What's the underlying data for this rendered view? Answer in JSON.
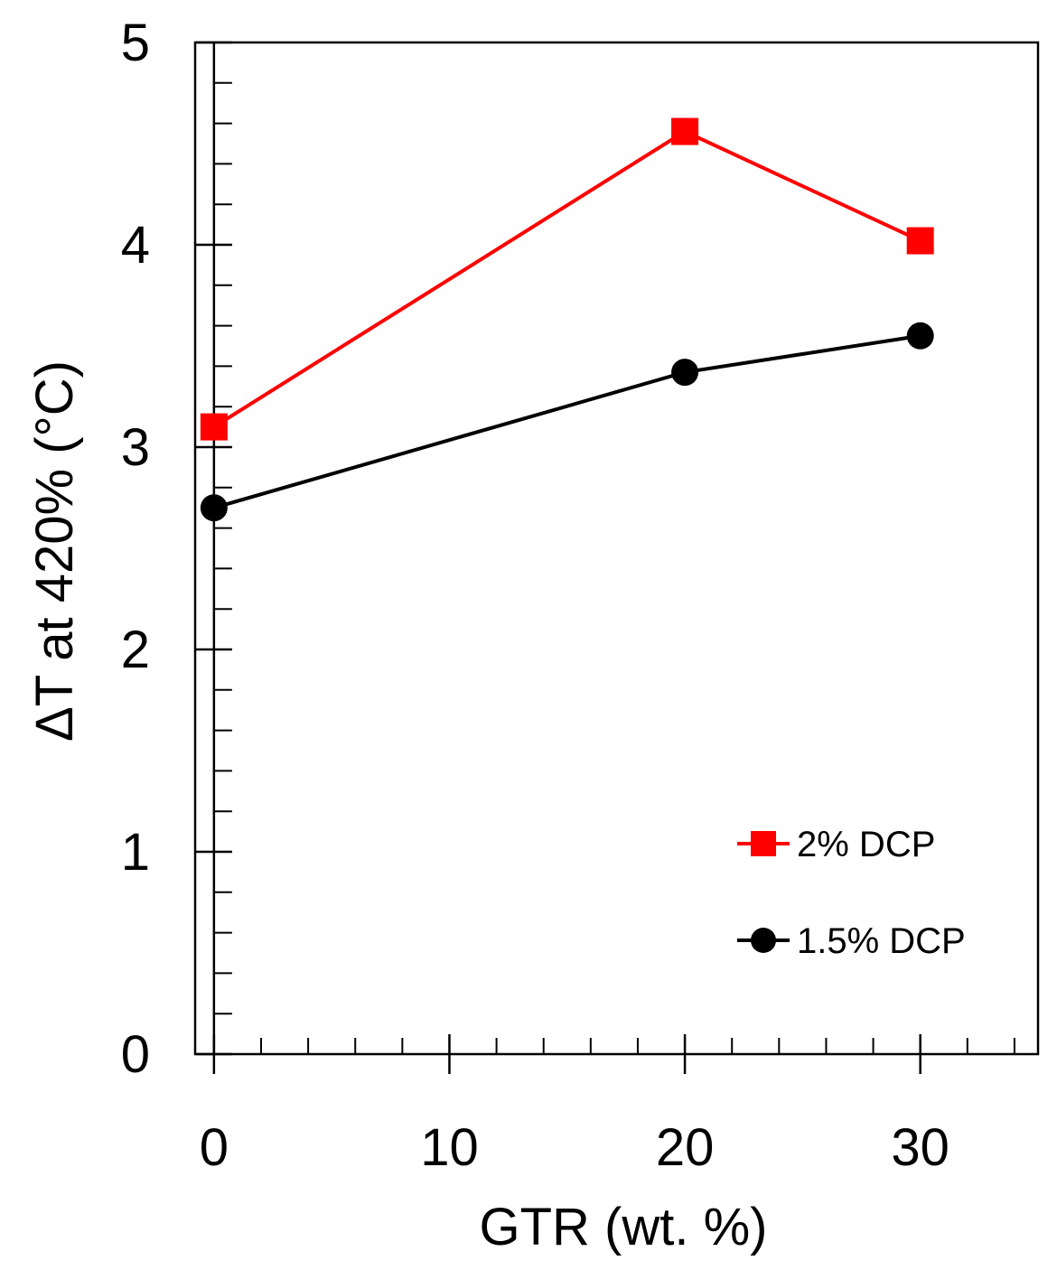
{
  "chart_data": {
    "type": "line",
    "xlabel": "GTR (wt. %)",
    "ylabel": "ΔT at 420% (°C)",
    "xlim": [
      -0.8,
      35
    ],
    "ylim": [
      0,
      5
    ],
    "x_ticks": [
      0,
      10,
      20,
      30
    ],
    "x_tick_labels": [
      "0",
      "10",
      "20",
      "30"
    ],
    "y_ticks": [
      0,
      1,
      2,
      3,
      4,
      5
    ],
    "y_tick_labels": [
      "0",
      "1",
      "2",
      "3",
      "4",
      "5"
    ],
    "x_minor_step": 2,
    "y_minor_step": 0.2,
    "legend_position": "lower-right",
    "series": [
      {
        "name": "2% DCP",
        "color": "#ff0000",
        "marker": "square",
        "x": [
          0,
          20,
          30
        ],
        "y": [
          3.1,
          4.56,
          4.02
        ]
      },
      {
        "name": "1.5% DCP",
        "color": "#000000",
        "marker": "circle",
        "x": [
          0,
          20,
          30
        ],
        "y": [
          2.7,
          3.37,
          3.55
        ]
      }
    ]
  }
}
